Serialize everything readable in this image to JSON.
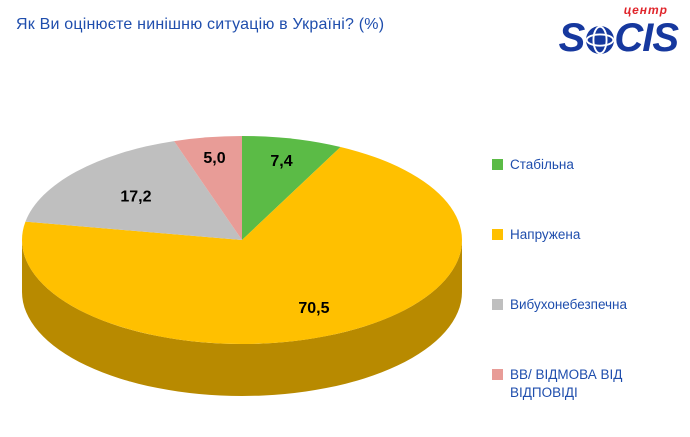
{
  "theme": {
    "text_blue": "#1F4EAD",
    "logo_blue": "#16389E",
    "logo_red": "#E0262C",
    "label_black": "#000000",
    "background": "#FFFFFF"
  },
  "header": {
    "title": "Як Ви оцінюєте нинішню ситуацію в Україні? (%)",
    "logo_part1": "S",
    "logo_part2": "CIS",
    "logo_sub": "центр"
  },
  "chart_data": {
    "type": "pie",
    "title": "Як Ви оцінюєте нинішню ситуацію в Україні? (%)",
    "unit": "%",
    "style": "3d",
    "start_angle_deg": -90,
    "direction": "clockwise",
    "legend_position": "right",
    "value_decimal_separator": ",",
    "data_labels_shown": true,
    "slices": [
      {
        "label": "Стабільна",
        "value": 7.4,
        "display": "7,4",
        "color": "#5BBB46"
      },
      {
        "label": "Напружена",
        "value": 70.5,
        "display": "70,5",
        "color": "#FFC000"
      },
      {
        "label": "Вибухонебезпечна",
        "value": 17.2,
        "display": "17,2",
        "color": "#BFBFBF"
      },
      {
        "label": "ВВ/ ВІДМОВА ВІД ВІДПОВІДІ",
        "value": 5.0,
        "display": "5,0",
        "color": "#E89C97"
      }
    ]
  }
}
